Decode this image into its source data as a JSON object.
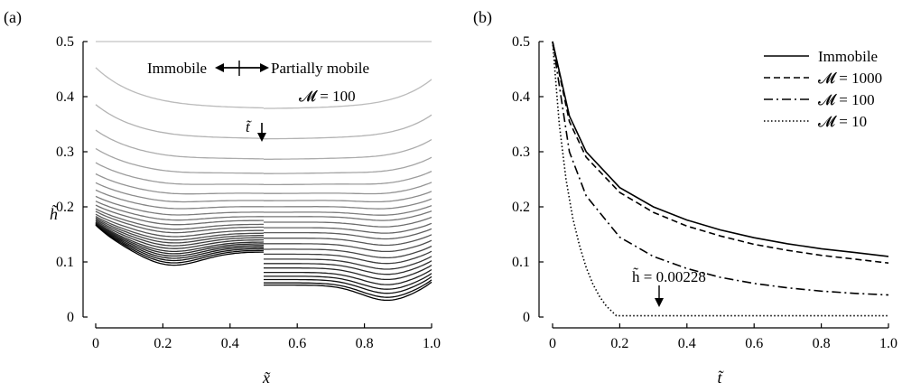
{
  "chart_data": [
    {
      "type": "line",
      "panel_label": "(a)",
      "xlabel": "x̃",
      "ylabel": "h̃",
      "xlim": [
        0,
        1.0
      ],
      "ylim": [
        0,
        0.5
      ],
      "x_ticks": [
        "0",
        "0.2",
        "0.4",
        "0.6",
        "0.8",
        "1.0"
      ],
      "y_ticks": [
        "0",
        "0.1",
        "0.2",
        "0.3",
        "0.4",
        "0.5"
      ],
      "x_tick_values": [
        0,
        0.2,
        0.4,
        0.6,
        0.8,
        1.0
      ],
      "y_tick_values": [
        0,
        0.1,
        0.2,
        0.3,
        0.4,
        0.5
      ],
      "grid": false,
      "annotations": {
        "left_region": "Immobile",
        "right_region": "Partially mobile",
        "mobility": "𝓜 = 100",
        "time_arrow": "t̃"
      },
      "boundary_x": 0.5,
      "curve_sets": {
        "count": 26,
        "initial_level": 0.5,
        "left_flat_levels": [
          0.5,
          0.378,
          0.323,
          0.286,
          0.26,
          0.24,
          0.224,
          0.211,
          0.2,
          0.19,
          0.182,
          0.175,
          0.168,
          0.163,
          0.157,
          0.152,
          0.148,
          0.144,
          0.14,
          0.136,
          0.133,
          0.13,
          0.127,
          0.124,
          0.121,
          0.118
        ],
        "right_flat_levels": [
          0.5,
          0.378,
          0.323,
          0.286,
          0.26,
          0.24,
          0.224,
          0.211,
          0.2,
          0.19,
          0.182,
          0.172,
          0.162,
          0.153,
          0.143,
          0.133,
          0.123,
          0.114,
          0.105,
          0.097,
          0.089,
          0.081,
          0.074,
          0.068,
          0.062,
          0.058
        ],
        "final_left_min": [
          0.2,
          0.1
        ],
        "final_right_min": [
          0.87,
          0.03
        ]
      }
    },
    {
      "type": "line",
      "panel_label": "(b)",
      "xlabel": "t̃",
      "ylabel": "",
      "xlim": [
        0,
        1.0
      ],
      "ylim": [
        0,
        0.5
      ],
      "x_ticks": [
        "0",
        "0.2",
        "0.4",
        "0.6",
        "0.8",
        "1.0"
      ],
      "y_ticks": [
        "0",
        "0.1",
        "0.2",
        "0.3",
        "0.4",
        "0.5"
      ],
      "x_tick_values": [
        0,
        0.2,
        0.4,
        0.6,
        0.8,
        1.0
      ],
      "y_tick_values": [
        0,
        0.1,
        0.2,
        0.3,
        0.4,
        0.5
      ],
      "grid": false,
      "legend": "top-right",
      "series": [
        {
          "name": "Immobile",
          "style": "solid",
          "x": [
            0,
            0.05,
            0.1,
            0.2,
            0.3,
            0.4,
            0.5,
            0.6,
            0.7,
            0.8,
            0.9,
            1.0
          ],
          "values": [
            0.5,
            0.365,
            0.3,
            0.235,
            0.2,
            0.176,
            0.158,
            0.144,
            0.133,
            0.124,
            0.117,
            0.11
          ]
        },
        {
          "name": "𝓜 = 1000",
          "style": "dashed",
          "x": [
            0,
            0.05,
            0.1,
            0.2,
            0.3,
            0.4,
            0.5,
            0.6,
            0.7,
            0.8,
            0.9,
            1.0
          ],
          "values": [
            0.5,
            0.355,
            0.29,
            0.226,
            0.19,
            0.165,
            0.147,
            0.132,
            0.121,
            0.112,
            0.105,
            0.098
          ]
        },
        {
          "name": "𝓜 = 100",
          "style": "dashdot",
          "x": [
            0,
            0.05,
            0.1,
            0.2,
            0.3,
            0.4,
            0.5,
            0.6,
            0.7,
            0.8,
            0.9,
            1.0
          ],
          "values": [
            0.5,
            0.3,
            0.22,
            0.145,
            0.11,
            0.088,
            0.072,
            0.061,
            0.053,
            0.047,
            0.043,
            0.04
          ]
        },
        {
          "name": "𝓜 = 10",
          "style": "dotted",
          "x": [
            0,
            0.02,
            0.04,
            0.06,
            0.08,
            0.1,
            0.12,
            0.14,
            0.16,
            0.18,
            0.19,
            0.2,
            1.0
          ],
          "values": [
            0.5,
            0.35,
            0.25,
            0.18,
            0.13,
            0.09,
            0.06,
            0.037,
            0.02,
            0.008,
            0.00228,
            0.00228,
            0.00228
          ]
        }
      ],
      "annotation": {
        "text": "h̃ = 0.00228",
        "x": 0.32,
        "y": 0.00228
      }
    }
  ]
}
